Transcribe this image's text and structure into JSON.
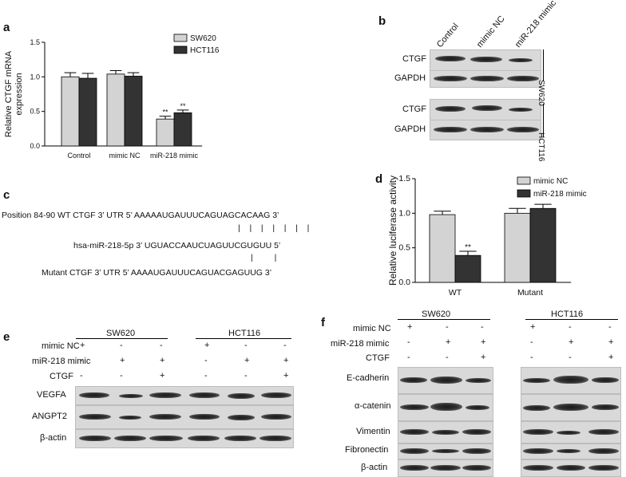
{
  "panels": {
    "a": {
      "label": "a"
    },
    "b": {
      "label": "b"
    },
    "c": {
      "label": "c"
    },
    "d": {
      "label": "d"
    },
    "e": {
      "label": "e"
    },
    "f": {
      "label": "f"
    }
  },
  "chart_data": [
    {
      "type": "bar",
      "panel": "a",
      "ylabel": "Relative CTGF mRNA expression",
      "ylabel_line1": "Relative CTGF mRNA",
      "ylabel_line2": "expression",
      "ylim": [
        0,
        1.5
      ],
      "yticks": [
        "0.0",
        "0.5",
        "1.0",
        "1.5"
      ],
      "categories": [
        "Control",
        "mimic NC",
        "miR-218 mimic"
      ],
      "series": [
        {
          "name": "SW620",
          "color": "#d3d3d3",
          "values": [
            1.0,
            1.04,
            0.39
          ],
          "errors": [
            0.06,
            0.05,
            0.04
          ]
        },
        {
          "name": "HCT116",
          "color": "#333333",
          "values": [
            0.98,
            1.01,
            0.48
          ],
          "errors": [
            0.07,
            0.05,
            0.04
          ]
        }
      ],
      "annotations": [
        "**",
        "**"
      ],
      "legend": "top-right"
    },
    {
      "type": "bar",
      "panel": "d",
      "ylabel": "Relative luciferase activity",
      "ylim": [
        0,
        1.5
      ],
      "yticks": [
        "0.0",
        "0.5",
        "1.0",
        "1.5"
      ],
      "categories": [
        "WT",
        "Mutant"
      ],
      "series": [
        {
          "name": "mimic NC",
          "color": "#d3d3d3",
          "values": [
            0.98,
            1.0
          ],
          "errors": [
            0.05,
            0.07
          ]
        },
        {
          "name": "miR-218 mimic",
          "color": "#333333",
          "values": [
            0.39,
            1.07
          ],
          "errors": [
            0.06,
            0.06
          ]
        }
      ],
      "annotations": [
        "**"
      ],
      "legend": "top-right"
    }
  ],
  "blot_b": {
    "columns": [
      "Control",
      "mimic NC",
      "miR-218 mimic"
    ],
    "rows": [
      "CTGF",
      "GAPDH",
      "CTGF",
      "GAPDH"
    ],
    "groups": [
      "SW620",
      "HCT116"
    ]
  },
  "panel_c": {
    "line1": "Position 84-90 WT CTGF 3’ UTR  5’ AAAAAUGAUUUCAGUAGCACAAG 3’",
    "line2": "hsa-miR-218-5p 3’ UGUACCAAUCUAGUUCGUGUU 5’",
    "line3": "Mutant CTGF 3’ UTR 5’ AAAAUGAUUUCAGUACGAGUUG 3’"
  },
  "blot_e": {
    "groups": [
      "SW620",
      "HCT116"
    ],
    "conditions": [
      "mimic  NC",
      "miR-218 mimic",
      "CTGF"
    ],
    "signs": [
      [
        "+",
        "-",
        "-",
        "+",
        "-",
        "-"
      ],
      [
        "-",
        "+",
        "+",
        "-",
        "+",
        "+"
      ],
      [
        "-",
        "-",
        "+",
        "-",
        "-",
        "+"
      ]
    ],
    "rows": [
      "VEGFA",
      "ANGPT2",
      "β-actin"
    ]
  },
  "blot_f": {
    "groups": [
      "SW620",
      "HCT116"
    ],
    "conditions": [
      "mimic  NC",
      "miR-218 mimic",
      "CTGF"
    ],
    "signs": [
      [
        "+",
        "-",
        "-",
        "+",
        "-",
        "-"
      ],
      [
        "-",
        "+",
        "+",
        "-",
        "+",
        "+"
      ],
      [
        "-",
        "-",
        "+",
        "-",
        "-",
        "+"
      ]
    ],
    "rows": [
      "E-cadherin",
      "α-catenin",
      "Vimentin",
      "Fibronectin",
      "β-actin"
    ]
  }
}
